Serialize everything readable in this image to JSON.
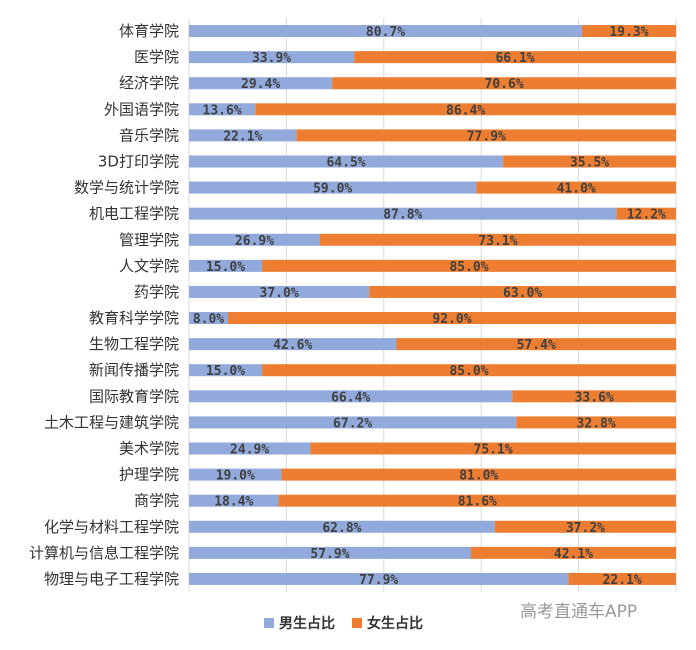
{
  "colors": {
    "male": "#91A9DB",
    "female": "#ED7D31",
    "grid": "#D9D9D9"
  },
  "watermark": "高考直通车APP",
  "chart_data": {
    "type": "bar",
    "orientation": "horizontal",
    "stacked": true,
    "percent_stacked": true,
    "xlim": [
      0,
      100
    ],
    "grid": true,
    "legend": "bottom",
    "title": "",
    "categories": [
      "体育学院",
      "医学院",
      "经济学院",
      "外国语学院",
      "音乐学院",
      "3D打印学院",
      "数学与统计学院",
      "机电工程学院",
      "管理学院",
      "人文学院",
      "药学院",
      "教育科学学院",
      "生物工程学院",
      "新闻传播学院",
      "国际教育学院",
      "土木工程与建筑学院",
      "美术学院",
      "护理学院",
      "商学院",
      "化学与材料工程学院",
      "计算机与信息工程学院",
      "物理与电子工程学院"
    ],
    "series": [
      {
        "name": "男生占比",
        "values": [
          80.7,
          33.9,
          29.4,
          13.6,
          22.1,
          64.5,
          59.0,
          87.8,
          26.9,
          15.0,
          37.0,
          8.0,
          42.6,
          15.0,
          66.4,
          67.2,
          24.9,
          19.0,
          18.4,
          62.8,
          57.9,
          77.9
        ],
        "labels": [
          "80.7%",
          "33.9%",
          "29.4%",
          "13.6%",
          "22.1%",
          "64.5%",
          "59.0%",
          "87.8%",
          "26.9%",
          "15.0%",
          "37.0%",
          "8.0%",
          "42.6%",
          "15.0%",
          "66.4%",
          "67.2%",
          "24.9%",
          "19.0%",
          "18.4%",
          "62.8%",
          "57.9%",
          "77.9%"
        ]
      },
      {
        "name": "女生占比",
        "values": [
          19.3,
          66.1,
          70.6,
          86.4,
          77.9,
          35.5,
          41.0,
          12.2,
          73.1,
          85.0,
          63.0,
          92.0,
          57.4,
          85.0,
          33.6,
          32.8,
          75.1,
          81.0,
          81.6,
          37.2,
          42.1,
          22.1
        ],
        "labels": [
          "19.3%",
          "66.1%",
          "70.6%",
          "86.4%",
          "77.9%",
          "35.5%",
          "41.0%",
          "12.2%",
          "73.1%",
          "85.0%",
          "63.0%",
          "92.0%",
          "57.4%",
          "85.0%",
          "33.6%",
          "32.8%",
          "75.1%",
          "81.0%",
          "81.6%",
          "37.2%",
          "42.1%",
          "22.1%"
        ]
      }
    ]
  }
}
